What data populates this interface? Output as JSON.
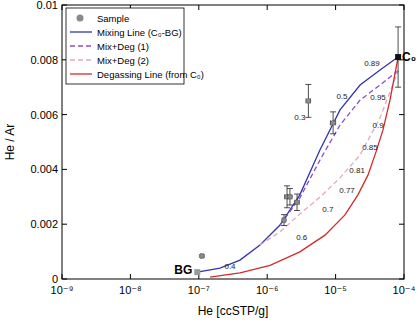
{
  "chart_data": {
    "type": "scatter",
    "x_label": "He [ccSTP/g]",
    "y_label": "He / Ar",
    "log": "x",
    "grid": false,
    "legend": "upper left",
    "xlim": [
      1e-09,
      0.0001
    ],
    "ylim": [
      0,
      0.01
    ],
    "xticks": [
      {
        "value": 1e-09,
        "label": "10⁻⁹"
      },
      {
        "value": 1e-08,
        "label": "10⁻⁸"
      },
      {
        "value": 1e-07,
        "label": "10⁻⁷"
      },
      {
        "value": 1e-06,
        "label": "10⁻⁶"
      },
      {
        "value": 1e-05,
        "label": "10⁻⁵"
      },
      {
        "value": 0.0001,
        "label": "10⁻⁴"
      }
    ],
    "yticks": [
      0,
      0.002,
      0.004,
      0.006,
      0.008,
      0.01
    ],
    "series": [
      {
        "name": "Sample",
        "type": "scatter",
        "marker": "circle",
        "color": "#8a8a8a",
        "x": [
          1.11e-07,
          1.76e-06,
          1.95e-06,
          2.15e-06,
          2.73e-06,
          4e-06,
          9.2e-06
        ],
        "values": [
          0.00084,
          0.00215,
          0.003,
          0.003,
          0.0028,
          0.0065,
          0.0057
        ],
        "x_errors": [
          5e-09,
          1e-07,
          1.5e-07,
          1.5e-07,
          2e-07,
          3e-07,
          8e-07
        ],
        "errors": [
          4e-05,
          0.0002,
          0.0004,
          0.0003,
          0.0003,
          0.0006,
          0.0004
        ]
      },
      {
        "name": "Mixing Line (C₀-BG)",
        "type": "line",
        "line_style": "solid",
        "color": "#3434b0",
        "x": [
          9.5e-08,
          2.04e-07,
          4e-07,
          7.85e-07,
          1.54e-06,
          3e-06,
          5.9e-06,
          1.16e-05,
          2.28e-05,
          4.46e-05,
          8.2e-05
        ],
        "values": [
          0.00025,
          0.0004,
          0.00069,
          0.00124,
          0.00197,
          0.00307,
          0.00471,
          0.00617,
          0.00708,
          0.00763,
          0.0081
        ]
      },
      {
        "name": "Mix+Deg (1)",
        "type": "line",
        "line_style": "dashed",
        "color": "#8a4cc8",
        "x": [
          1.54e-06,
          3e-06,
          5.9e-06,
          1.16e-05,
          2.28e-05,
          4.46e-05,
          8.2e-05
        ],
        "values": [
          0.00197,
          0.00296,
          0.00434,
          0.00562,
          0.00653,
          0.00708,
          0.0076
        ]
      },
      {
        "name": "Mix+Deg (2)",
        "type": "line",
        "line_style": "dashed",
        "color": "#e4a6c8",
        "x": [
          7.85e-07,
          1.54e-06,
          3e-06,
          5.9e-06,
          1.16e-05,
          2.28e-05,
          4.46e-05,
          8.2e-05
        ],
        "values": [
          0.00124,
          0.00172,
          0.00237,
          0.00299,
          0.00369,
          0.00453,
          0.00588,
          0.0076
        ]
      },
      {
        "name": "Degassing Line (from C₀)",
        "type": "line",
        "line_style": "solid",
        "color": "#d42a2a",
        "x": [
          8.2e-05,
          6.24e-05,
          4.93e-05,
          3.9e-05,
          2.98e-05,
          2.12e-05,
          1.37e-05,
          7e-06,
          3e-06,
          1.1e-06,
          4e-07,
          1.46e-07
        ],
        "values": [
          0.0081,
          0.00653,
          0.00544,
          0.00464,
          0.0038,
          0.00307,
          0.00234,
          0.0016,
          0.00099,
          0.0005,
          0.00022,
          7e-05
        ]
      }
    ],
    "points": [
      {
        "label": "BG",
        "x": 9.5e-08,
        "y": 0.00025,
        "marker": "square",
        "color": "#9a9a9a"
      },
      {
        "label": "C₀",
        "x": 8.2e-05,
        "y": 0.0081,
        "error": 0.0011,
        "marker": "square",
        "color": "#111111"
      }
    ],
    "annotations": [
      {
        "text": "0.89",
        "x": 3.4e-05,
        "y": 0.0079
      },
      {
        "text": "0.5",
        "x": 1.24e-05,
        "y": 0.00668
      },
      {
        "text": "0.3",
        "x": 3e-06,
        "y": 0.00591
      },
      {
        "text": "0.95",
        "x": 4.17e-05,
        "y": 0.00664
      },
      {
        "text": "0.9",
        "x": 4.17e-05,
        "y": 0.00562
      },
      {
        "text": "0.85",
        "x": 3.18e-05,
        "y": 0.00482
      },
      {
        "text": "0.81",
        "x": 2.06e-05,
        "y": 0.00398
      },
      {
        "text": "0.77",
        "x": 1.47e-05,
        "y": 0.00325
      },
      {
        "text": "0.7",
        "x": 7.7e-06,
        "y": 0.00255
      },
      {
        "text": "0.6",
        "x": 3.2e-06,
        "y": 0.00153
      },
      {
        "text": "0.4",
        "x": 2.86e-07,
        "y": 0.00047
      }
    ]
  }
}
